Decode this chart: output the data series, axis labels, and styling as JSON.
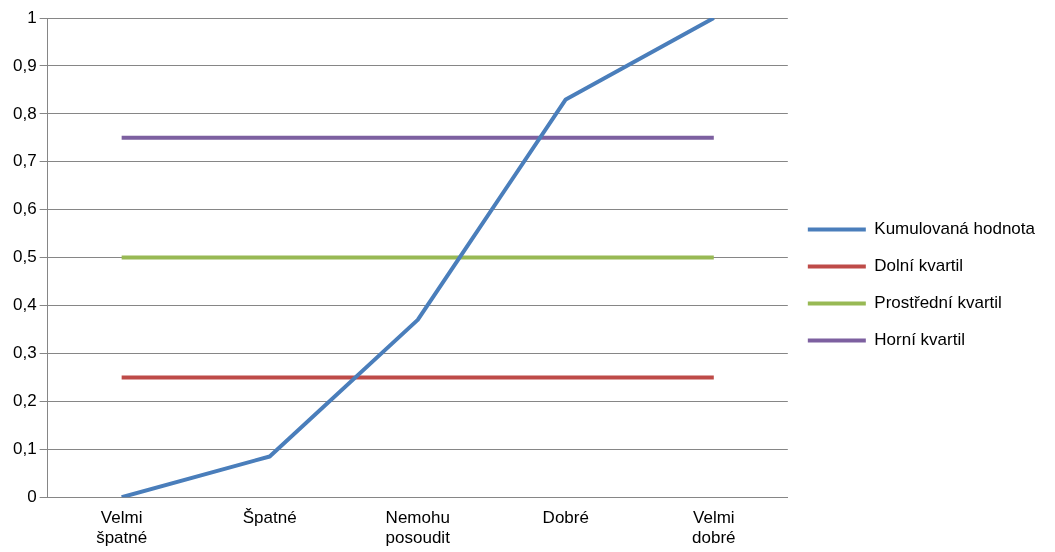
{
  "chart_data": {
    "type": "line",
    "categories": [
      "Velmi špatné",
      "Špatné",
      "Nemohu posoudit",
      "Dobré",
      "Velmi dobré"
    ],
    "series": [
      {
        "name": "Kumulovaná hodnota",
        "color": "#4a7ebb",
        "values": [
          0,
          0.085,
          0.37,
          0.83,
          1
        ]
      },
      {
        "name": "Dolní kvartil",
        "color": "#be4b48",
        "values": [
          0.25,
          0.25,
          0.25,
          0.25,
          0.25
        ]
      },
      {
        "name": "Prostřední kvartil",
        "color": "#98b954",
        "values": [
          0.5,
          0.5,
          0.5,
          0.5,
          0.5
        ]
      },
      {
        "name": "Horní kvartil",
        "color": "#7d60a0",
        "values": [
          0.75,
          0.75,
          0.75,
          0.75,
          0.75
        ]
      }
    ],
    "ylim": [
      0,
      1
    ],
    "yticks": [
      0,
      {
        "value": 0.1,
        "label": "0,1"
      },
      {
        "value": 0.2,
        "label": "0,2"
      },
      {
        "value": 0.3,
        "label": "0,3"
      },
      {
        "value": 0.4,
        "label": "0,4"
      },
      {
        "value": 0.5,
        "label": "0,5"
      },
      {
        "value": 0.6,
        "label": "0,6"
      },
      {
        "value": 0.7,
        "label": "0,7"
      },
      {
        "value": 0.8,
        "label": "0,8"
      },
      {
        "value": 0.9,
        "label": "0,9"
      },
      1
    ],
    "grid": "y",
    "legend": "right",
    "marker": "none",
    "line_style": "solid"
  }
}
